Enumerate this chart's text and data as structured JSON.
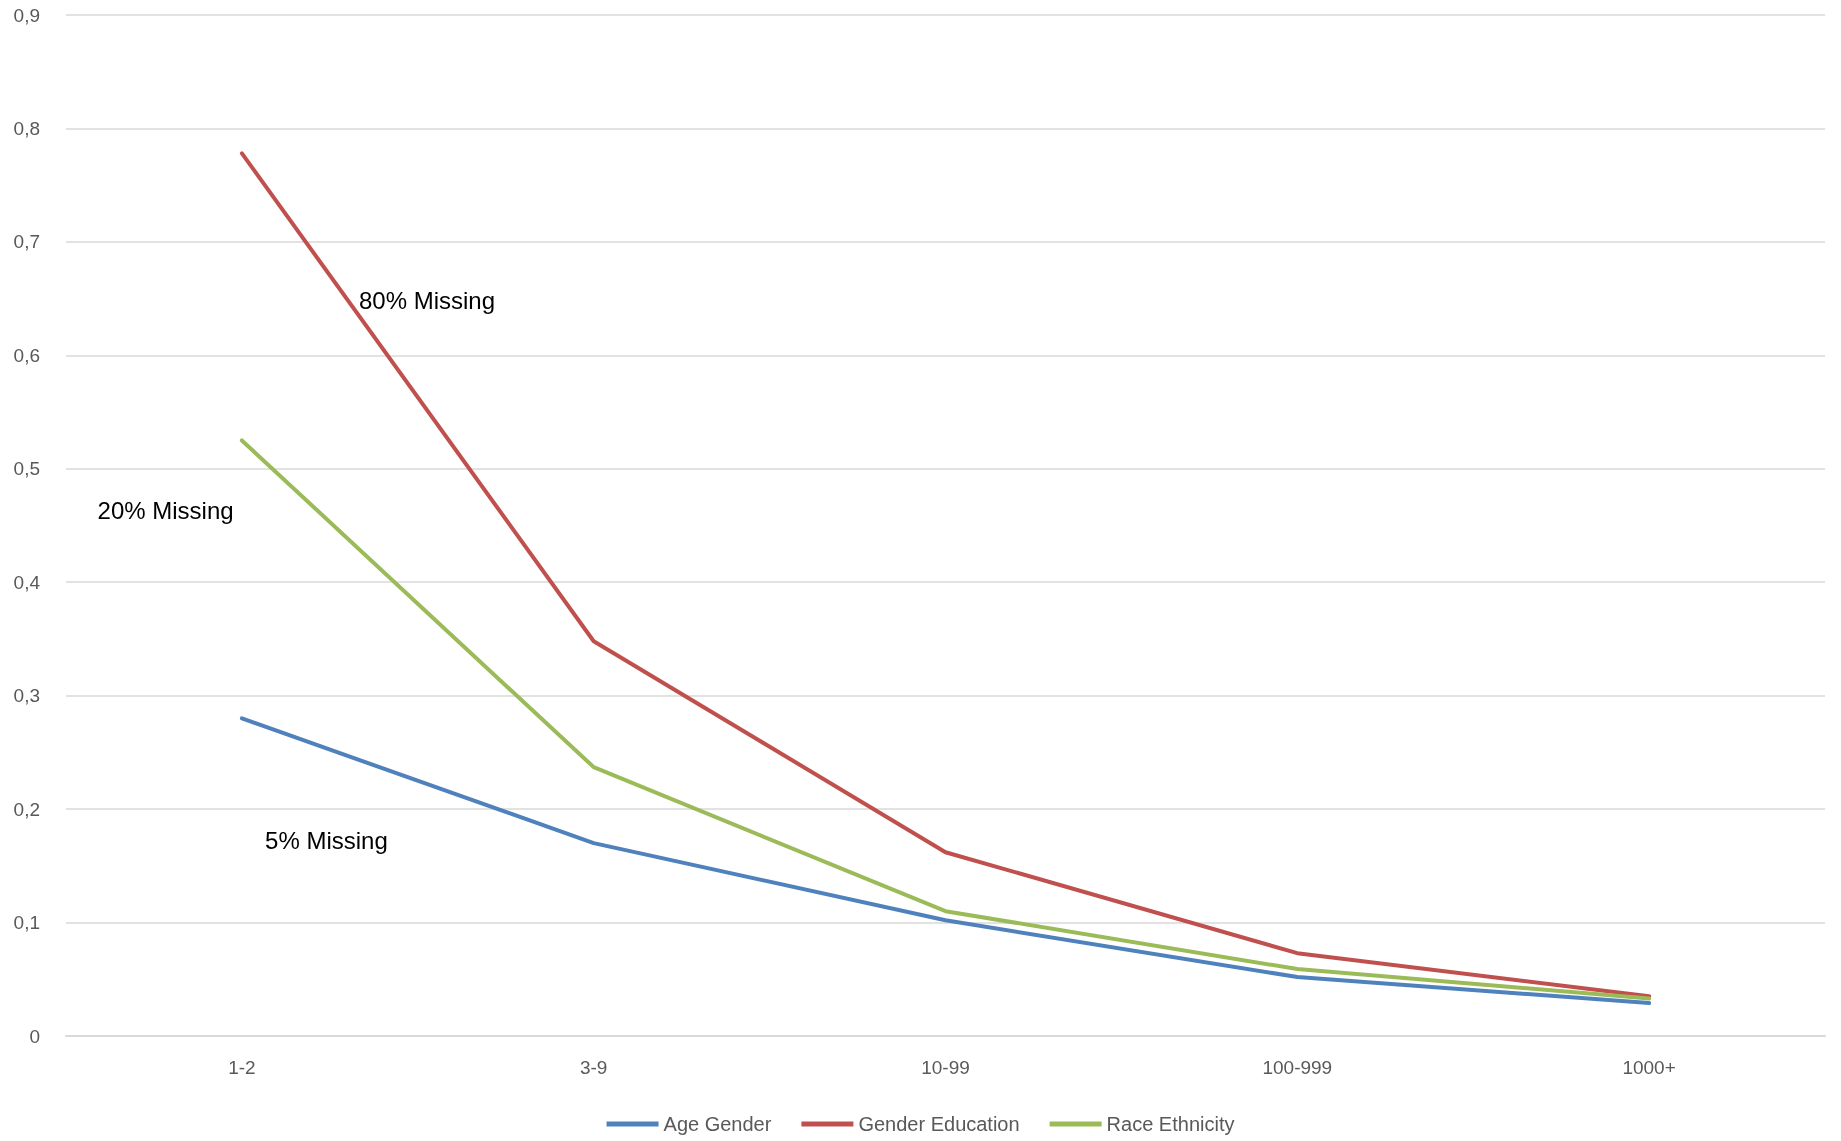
{
  "chart_data": {
    "type": "line",
    "categories": [
      "1-2",
      "3-9",
      "10-99",
      "100-999",
      "1000+"
    ],
    "series": [
      {
        "name": "Age Gender",
        "color": "#4f81bd",
        "values": [
          0.28,
          0.17,
          0.102,
          0.052,
          0.029
        ]
      },
      {
        "name": "Gender Education",
        "color": "#c0504d",
        "values": [
          0.778,
          0.348,
          0.162,
          0.073,
          0.035
        ]
      },
      {
        "name": "Race Ethnicity",
        "color": "#9bbb59",
        "values": [
          0.525,
          0.237,
          0.11,
          0.059,
          0.033
        ]
      }
    ],
    "ylim": [
      0,
      0.9
    ],
    "yticks": [
      0,
      {
        "value": 0.1,
        "label": "0,1"
      },
      {
        "value": 0.2,
        "label": "0,2"
      },
      {
        "value": 0.3,
        "label": "0,3"
      },
      {
        "value": 0.4,
        "label": "0,4"
      },
      {
        "value": 0.5,
        "label": "0,5"
      },
      {
        "value": 0.6,
        "label": "0,6"
      },
      {
        "value": 0.7,
        "label": "0,7"
      },
      {
        "value": 0.8,
        "label": "0,8"
      },
      {
        "value": 0.9,
        "label": "0,9"
      }
    ],
    "annotations": [
      "80% Missing",
      "20% Missing",
      "5% Missing"
    ],
    "grid": "y",
    "legend": "bottom",
    "marker": "none",
    "line_style": "solid"
  }
}
